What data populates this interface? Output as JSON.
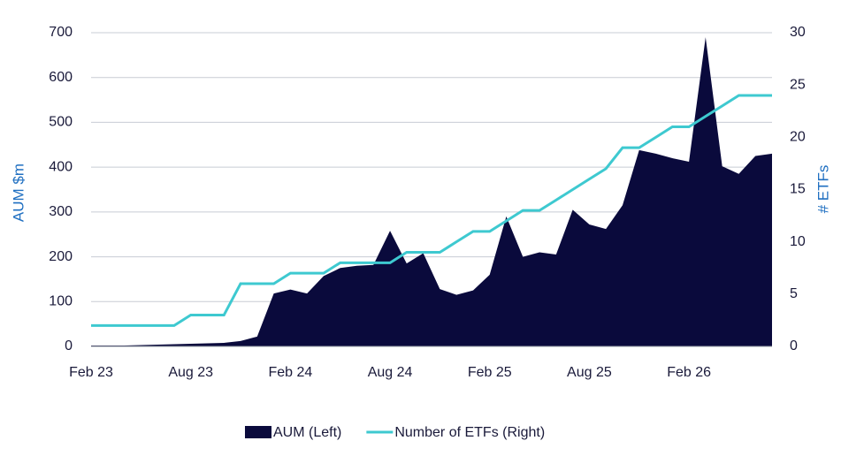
{
  "chart_data": {
    "type": "area-line",
    "y_label": "AUM $m",
    "y2_label": "# ETFs",
    "categories": [
      "Feb 23",
      null,
      null,
      null,
      null,
      null,
      "Aug 23",
      null,
      null,
      null,
      null,
      null,
      "Feb 24",
      null,
      null,
      null,
      null,
      null,
      "Aug 24",
      null,
      null,
      null,
      null,
      null,
      "Feb 25",
      null,
      null,
      null,
      null,
      null,
      "Aug 25",
      null,
      null,
      null,
      null,
      null,
      "Feb 26",
      null,
      null,
      null,
      null,
      null
    ],
    "series": [
      {
        "name": "AUM (Left)",
        "kind": "area",
        "color": "#0a0a3c",
        "axis": "y",
        "values": [
          2,
          2,
          2,
          3,
          4,
          5,
          6,
          7,
          8,
          12,
          22,
          118,
          127,
          118,
          157,
          175,
          180,
          182,
          258,
          185,
          208,
          128,
          115,
          125,
          160,
          290,
          200,
          210,
          205,
          305,
          272,
          262,
          315,
          438,
          430,
          420,
          412,
          690,
          402,
          385,
          425,
          430
        ]
      },
      {
        "name": "Number of ETFs (Right)",
        "kind": "line",
        "color": "#3ec9d0",
        "axis": "y2",
        "values": [
          2,
          2,
          2,
          2,
          2,
          2,
          3,
          3,
          3,
          6,
          6,
          6,
          7,
          7,
          7,
          8,
          8,
          8,
          8,
          9,
          9,
          9,
          10,
          11,
          11,
          12,
          13,
          13,
          14,
          15,
          16,
          17,
          19,
          19,
          20,
          21,
          21,
          22,
          23,
          24,
          24,
          24
        ]
      }
    ],
    "ylim": [
      0,
      700
    ],
    "yticks": [
      0,
      100,
      200,
      300,
      400,
      500,
      600,
      700
    ],
    "y2lim": [
      0,
      30
    ],
    "y2ticks": [
      0,
      5,
      10,
      15,
      20,
      25,
      30
    ],
    "grid": true,
    "legend": "bottom"
  }
}
